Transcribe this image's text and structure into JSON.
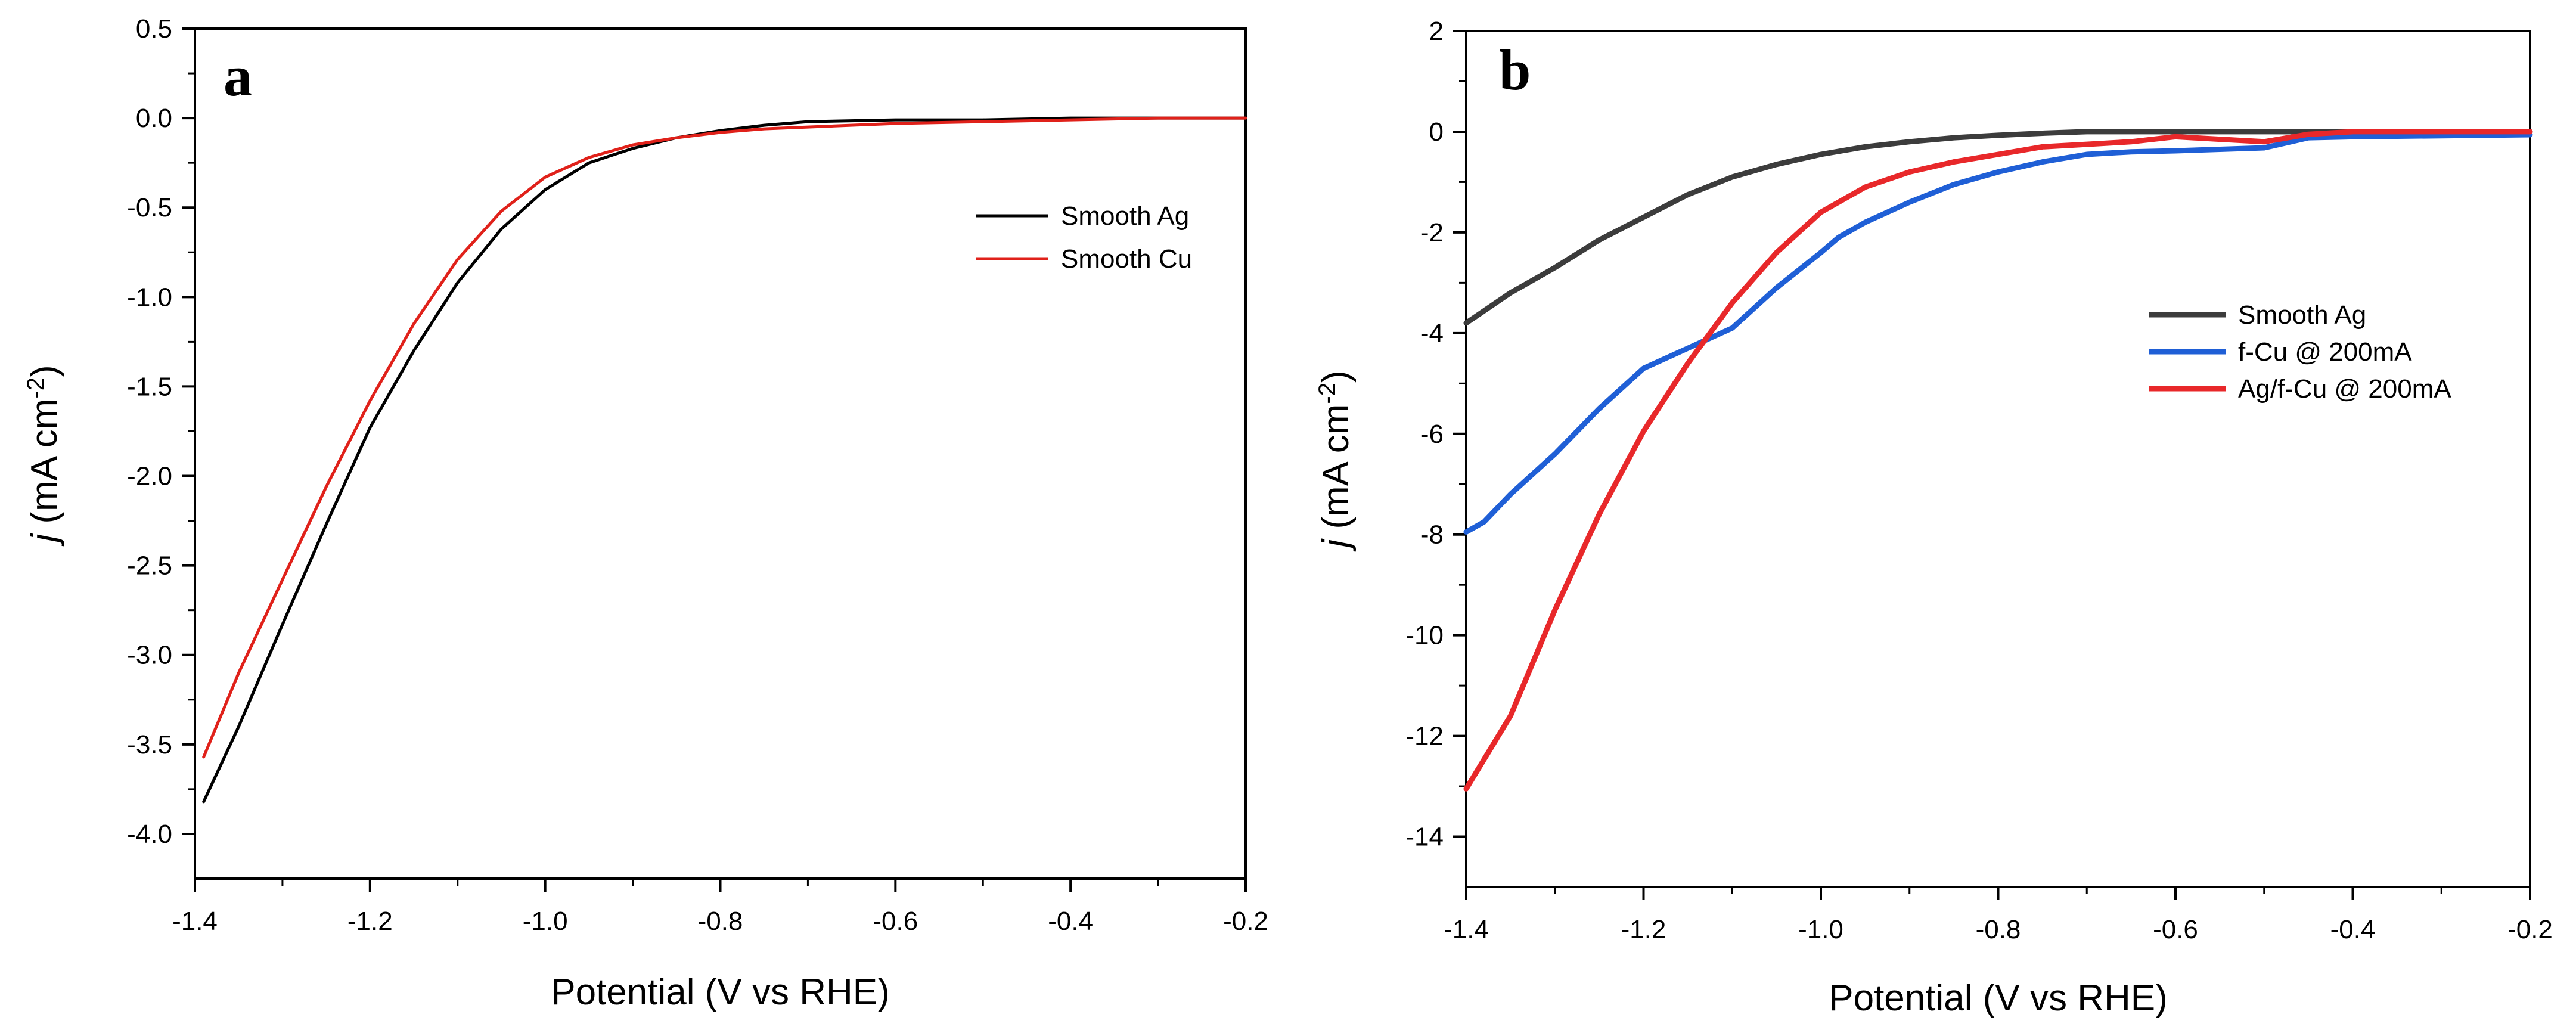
{
  "chart_data": [
    {
      "type": "line",
      "panel_label": "a",
      "xlabel": "Potential (V vs RHE)",
      "ylabel": {
        "italic": "j",
        "main": " (mA cm",
        "sup": "-2",
        "close": ")"
      },
      "xlim": [
        -1.4,
        -0.2
      ],
      "ylim": [
        -4.25,
        0.5
      ],
      "xticks": [
        -1.4,
        -1.2,
        -1.0,
        -0.8,
        -0.6,
        -0.4,
        -0.2
      ],
      "xtick_labels": [
        "-1.4",
        "-1.2",
        "-1.0",
        "-0.8",
        "-0.6",
        "-0.4",
        "-0.2"
      ],
      "yticks": [
        0.5,
        0.0,
        -0.5,
        -1.0,
        -1.5,
        -2.0,
        -2.5,
        -3.0,
        -3.5,
        -4.0
      ],
      "ytick_labels": [
        "0.5",
        "0.0",
        "-0.5",
        "-1.0",
        "-1.5",
        "-2.0",
        "-2.5",
        "-3.0",
        "-3.5",
        "-4.0"
      ],
      "grid": false,
      "legend_position": "upper-right",
      "series": [
        {
          "name": "Smooth Ag",
          "color": "#000000",
          "x": [
            -1.39,
            -1.35,
            -1.3,
            -1.25,
            -1.2,
            -1.15,
            -1.1,
            -1.05,
            -1.0,
            -0.95,
            -0.9,
            -0.85,
            -0.8,
            -0.75,
            -0.7,
            -0.6,
            -0.5,
            -0.4,
            -0.3,
            -0.2
          ],
          "y": [
            -3.82,
            -3.4,
            -2.83,
            -2.27,
            -1.73,
            -1.3,
            -0.92,
            -0.62,
            -0.4,
            -0.25,
            -0.17,
            -0.11,
            -0.07,
            -0.04,
            -0.02,
            -0.01,
            -0.01,
            0.0,
            0.0,
            0.0
          ]
        },
        {
          "name": "Smooth Cu",
          "color": "#e0211a",
          "x": [
            -1.39,
            -1.35,
            -1.3,
            -1.25,
            -1.2,
            -1.15,
            -1.1,
            -1.05,
            -1.0,
            -0.95,
            -0.9,
            -0.85,
            -0.8,
            -0.75,
            -0.7,
            -0.6,
            -0.5,
            -0.4,
            -0.3,
            -0.2
          ],
          "y": [
            -3.57,
            -3.1,
            -2.58,
            -2.06,
            -1.58,
            -1.15,
            -0.79,
            -0.52,
            -0.33,
            -0.22,
            -0.15,
            -0.11,
            -0.08,
            -0.06,
            -0.05,
            -0.03,
            -0.02,
            -0.01,
            0.0,
            0.0
          ]
        }
      ]
    },
    {
      "type": "line",
      "panel_label": "b",
      "xlabel": "Potential (V vs RHE)",
      "ylabel": {
        "italic": "j",
        "main": " (mA cm",
        "sup": "-2",
        "close": ")"
      },
      "xlim": [
        -1.4,
        -0.2
      ],
      "ylim": [
        -15,
        2
      ],
      "xticks": [
        -1.4,
        -1.2,
        -1.0,
        -0.8,
        -0.6,
        -0.4,
        -0.2
      ],
      "xtick_labels": [
        "-1.4",
        "-1.2",
        "-1.0",
        "-0.8",
        "-0.6",
        "-0.4",
        "-0.2"
      ],
      "yticks": [
        2,
        0,
        -2,
        -4,
        -6,
        -8,
        -10,
        -12,
        -14
      ],
      "ytick_labels": [
        "2",
        "0",
        "-2",
        "-4",
        "-6",
        "-8",
        "-10",
        "-12",
        "-14"
      ],
      "grid": false,
      "legend_position": "center-right",
      "series": [
        {
          "name": "Smooth Ag",
          "color": "#3c3c3c",
          "x": [
            -1.4,
            -1.35,
            -1.3,
            -1.25,
            -1.2,
            -1.15,
            -1.1,
            -1.05,
            -1.0,
            -0.95,
            -0.9,
            -0.85,
            -0.8,
            -0.75,
            -0.7,
            -0.6,
            -0.5,
            -0.4,
            -0.3,
            -0.2
          ],
          "y": [
            -3.8,
            -3.2,
            -2.7,
            -2.15,
            -1.7,
            -1.25,
            -0.9,
            -0.65,
            -0.45,
            -0.3,
            -0.2,
            -0.12,
            -0.07,
            -0.03,
            0.0,
            0.0,
            0.0,
            0.0,
            0.0,
            0.0
          ]
        },
        {
          "name": "f-Cu @ 200mA",
          "color": "#1f5fd6",
          "x": [
            -1.4,
            -1.38,
            -1.35,
            -1.3,
            -1.25,
            -1.2,
            -1.15,
            -1.1,
            -1.05,
            -1.0,
            -0.98,
            -0.95,
            -0.9,
            -0.85,
            -0.8,
            -0.75,
            -0.7,
            -0.65,
            -0.6,
            -0.55,
            -0.5,
            -0.45,
            -0.4,
            -0.3,
            -0.2
          ],
          "y": [
            -7.95,
            -7.75,
            -7.2,
            -6.4,
            -5.5,
            -4.7,
            -4.3,
            -3.9,
            -3.1,
            -2.4,
            -2.1,
            -1.8,
            -1.4,
            -1.05,
            -0.8,
            -0.6,
            -0.45,
            -0.4,
            -0.38,
            -0.35,
            -0.32,
            -0.12,
            -0.1,
            -0.08,
            -0.06
          ]
        },
        {
          "name": "Ag/f-Cu @ 200mA",
          "color": "#e8282a",
          "x": [
            -1.4,
            -1.35,
            -1.3,
            -1.25,
            -1.2,
            -1.15,
            -1.1,
            -1.05,
            -1.0,
            -0.95,
            -0.9,
            -0.85,
            -0.8,
            -0.75,
            -0.7,
            -0.65,
            -0.6,
            -0.55,
            -0.5,
            -0.45,
            -0.4,
            -0.3,
            -0.2
          ],
          "y": [
            -13.05,
            -11.6,
            -9.5,
            -7.6,
            -5.95,
            -4.6,
            -3.4,
            -2.4,
            -1.6,
            -1.1,
            -0.8,
            -0.6,
            -0.45,
            -0.3,
            -0.25,
            -0.2,
            -0.1,
            -0.15,
            -0.2,
            -0.05,
            0.0,
            0.0,
            0.0
          ]
        }
      ]
    }
  ]
}
